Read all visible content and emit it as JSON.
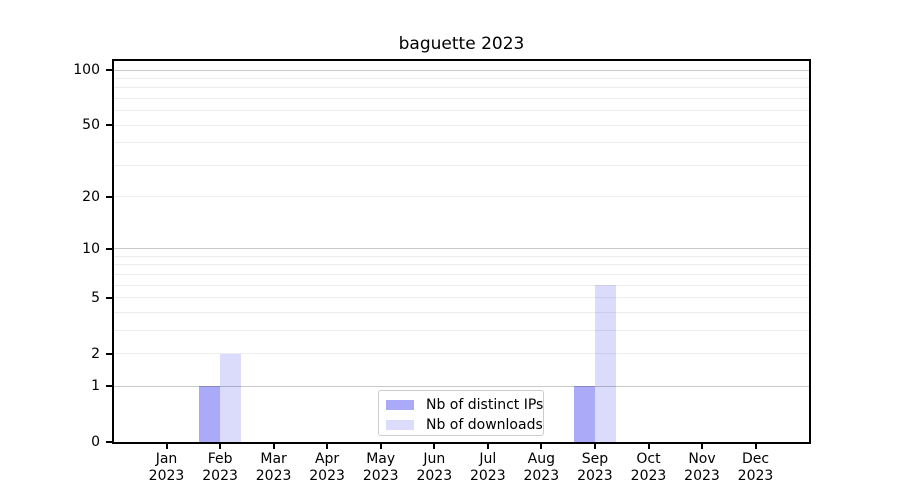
{
  "chart_data": {
    "type": "bar",
    "title": "baguette 2023",
    "xlabel": "",
    "ylabel": "",
    "categories": [
      "Jan",
      "Feb",
      "Mar",
      "Apr",
      "May",
      "Jun",
      "Jul",
      "Aug",
      "Sep",
      "Oct",
      "Nov",
      "Dec"
    ],
    "year_label": "2023",
    "series": [
      {
        "name": "Nb of distinct IPs",
        "color": "#5555f2",
        "alpha": 0.5,
        "rendered_color": "#aaaaf8",
        "values": [
          0,
          1,
          0,
          0,
          0,
          0,
          0,
          0,
          1,
          0,
          0,
          0
        ]
      },
      {
        "name": "Nb of downloads",
        "color": "#5555f2",
        "alpha": 0.21,
        "rendered_color": "#dbdbfa",
        "values": [
          0,
          2,
          0,
          0,
          0,
          0,
          0,
          0,
          6,
          0,
          0,
          0
        ]
      }
    ],
    "yscale": "log1p",
    "ylim": [
      0,
      112
    ],
    "yticks": [
      0,
      1,
      2,
      5,
      10,
      20,
      50,
      100
    ],
    "major_gridlines": [
      1,
      10,
      100
    ],
    "minor_gridlines": [
      2,
      3,
      4,
      5,
      6,
      7,
      8,
      9,
      20,
      30,
      40,
      50,
      60,
      70,
      80,
      90
    ],
    "grid_color_major": "#c9c9c9",
    "grid_color_minor": "#ededed",
    "axis_color": "#000000",
    "legend_position": "lower center",
    "legend_border_color": "#cccccc"
  }
}
